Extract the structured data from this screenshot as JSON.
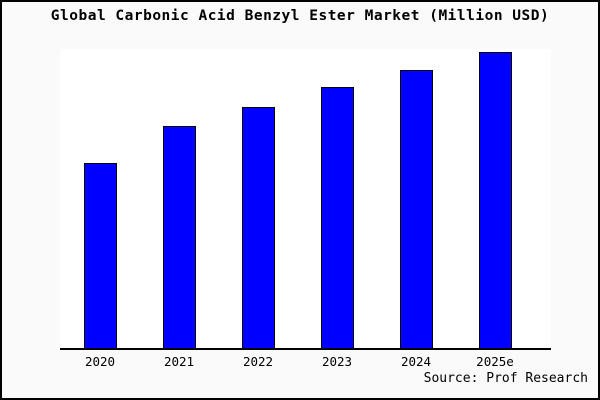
{
  "chart_data": {
    "type": "bar",
    "title": "Global Carbonic Acid Benzyl Ester Market (Million USD)",
    "categories": [
      "2020",
      "2021",
      "2022",
      "2023",
      "2024",
      "2025e"
    ],
    "values": [
      62.5,
      75,
      81.5,
      88,
      94,
      100
    ],
    "value_note": "no y-axis shown; values are relative bar heights indexed to 2025e = 100",
    "xlabel": "",
    "ylabel": "",
    "ylim": [
      0,
      101
    ],
    "grid": false,
    "legend": false,
    "bar_color": "#0000ff",
    "bar_border_color": "#000000",
    "plot_background": "#ffffff",
    "page_background": "#fafafa",
    "source_note": "Source: Prof Research"
  }
}
